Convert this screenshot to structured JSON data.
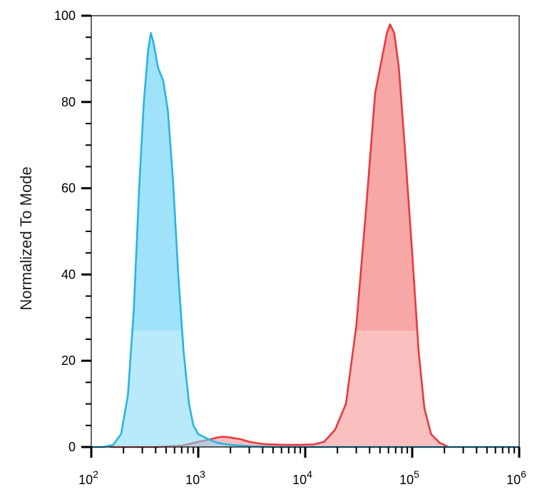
{
  "chart_data": {
    "type": "area",
    "title": "",
    "xlabel": "",
    "ylabel": "Normalized To Mode",
    "x_scale": "log",
    "xlim": [
      100,
      1000000
    ],
    "ylim": [
      0,
      100
    ],
    "y_ticks": [
      {
        "value": 0,
        "label": "0"
      },
      {
        "value": 20,
        "label": "20"
      },
      {
        "value": 40,
        "label": "40"
      },
      {
        "value": 60,
        "label": "60"
      },
      {
        "value": 80,
        "label": "80"
      },
      {
        "value": 100,
        "label": "100"
      }
    ],
    "x_ticks": [
      {
        "value": 100,
        "base": "10",
        "exp": "2"
      },
      {
        "value": 1000,
        "base": "10",
        "exp": "3"
      },
      {
        "value": 10000,
        "base": "10",
        "exp": "4"
      },
      {
        "value": 100000,
        "base": "10",
        "exp": "5"
      },
      {
        "value": 1000000,
        "base": "10",
        "exp": "6"
      }
    ],
    "grid": false,
    "legend": "none",
    "series": [
      {
        "color": "#e8393d",
        "fill": "#f58a8a",
        "points": [
          [
            150,
            0
          ],
          [
            400,
            0
          ],
          [
            700,
            0.3
          ],
          [
            1000,
            1.2
          ],
          [
            1300,
            1.8
          ],
          [
            1500,
            2.2
          ],
          [
            1700,
            2.4
          ],
          [
            2000,
            2.2
          ],
          [
            2500,
            1.8
          ],
          [
            3000,
            1.2
          ],
          [
            4000,
            0.7
          ],
          [
            6000,
            0.5
          ],
          [
            9000,
            0.5
          ],
          [
            12000,
            0.6
          ],
          [
            15000,
            1.2
          ],
          [
            19000,
            4
          ],
          [
            24000,
            10
          ],
          [
            30000,
            28
          ],
          [
            37000,
            55
          ],
          [
            45000,
            82
          ],
          [
            52000,
            90
          ],
          [
            58000,
            96
          ],
          [
            62000,
            98
          ],
          [
            68000,
            96
          ],
          [
            75000,
            88
          ],
          [
            85000,
            70
          ],
          [
            100000,
            45
          ],
          [
            115000,
            22
          ],
          [
            130000,
            9
          ],
          [
            150000,
            3
          ],
          [
            180000,
            1
          ],
          [
            220000,
            0
          ]
        ]
      },
      {
        "color": "#28b4e0",
        "fill": "#7fd8f8",
        "points": [
          [
            100,
            0
          ],
          [
            130,
            0
          ],
          [
            160,
            0.5
          ],
          [
            190,
            3
          ],
          [
            220,
            12
          ],
          [
            250,
            32
          ],
          [
            280,
            60
          ],
          [
            310,
            80
          ],
          [
            340,
            92
          ],
          [
            360,
            96
          ],
          [
            380,
            94
          ],
          [
            420,
            88
          ],
          [
            470,
            85
          ],
          [
            520,
            78
          ],
          [
            580,
            62
          ],
          [
            650,
            40
          ],
          [
            730,
            22
          ],
          [
            820,
            10
          ],
          [
            900,
            5
          ],
          [
            1000,
            3
          ],
          [
            1200,
            2
          ],
          [
            1500,
            1
          ],
          [
            2000,
            0.5
          ],
          [
            3000,
            0.2
          ],
          [
            5000,
            0
          ],
          [
            1000000,
            0
          ]
        ]
      }
    ]
  }
}
